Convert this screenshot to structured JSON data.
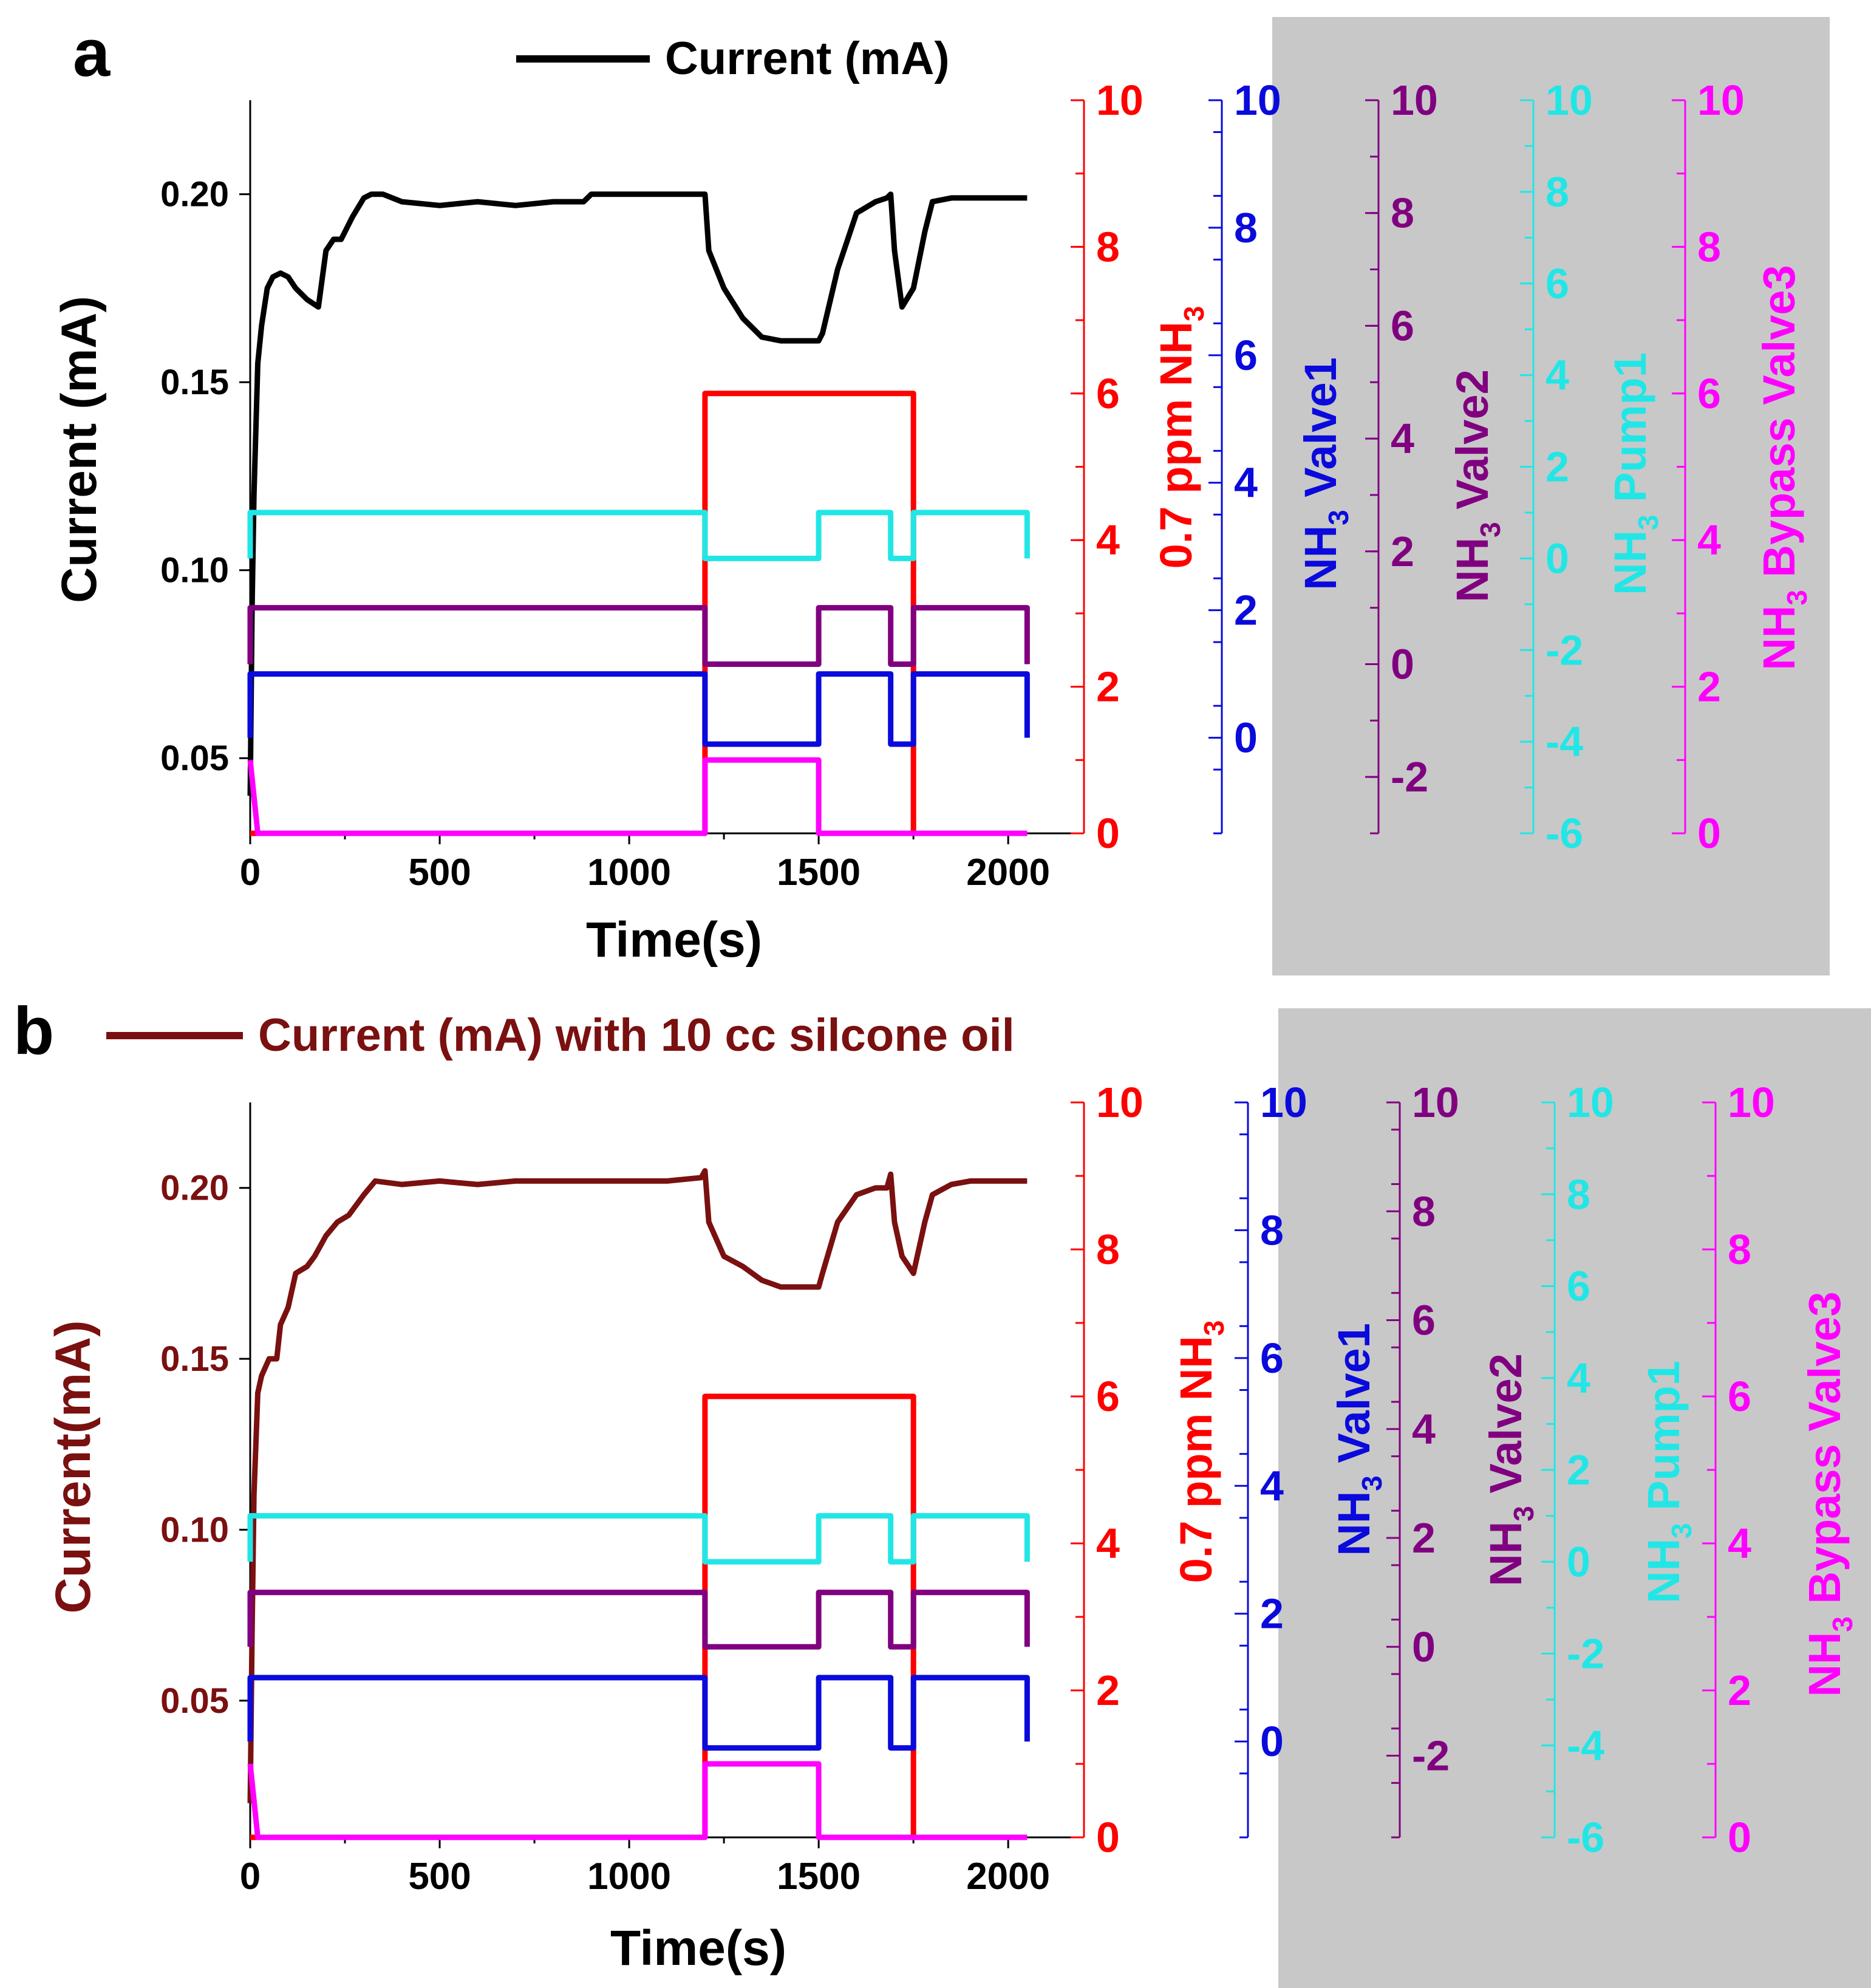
{
  "panels": [
    {
      "letter": "a",
      "legend": "Current (mA)",
      "xlabel": "Time(s)",
      "left_label": "Current (mA)",
      "right_labels": {
        "ppm": {
          "pre": "0.7 ppm NH",
          "sub": "3"
        },
        "valve1": {
          "pre": "NH",
          "sub": "3",
          "post": " Valve1"
        },
        "valve2": {
          "pre": "NH",
          "sub": "3",
          "post": " Valve2"
        },
        "pump1": {
          "pre": "NH",
          "sub": "3",
          "post": " Pump1"
        },
        "bypass": {
          "pre": "NH",
          "sub": "3",
          "post": " Bypass Valve3"
        }
      }
    },
    {
      "letter": "b",
      "legend": "Current (mA) with 10 cc silcone oil",
      "xlabel": "Time(s)",
      "left_label": "Current(mA)",
      "right_labels": {
        "ppm": {
          "pre": "0.7 ppm NH",
          "sub": "3"
        },
        "valve1": {
          "pre": "NH",
          "sub": "3",
          "post": " Valve1"
        },
        "valve2": {
          "pre": "NH",
          "sub": "3",
          "post": " Valve2"
        },
        "pump1": {
          "pre": "NH",
          "sub": "3",
          "post": " Pump1"
        },
        "bypass": {
          "pre": "NH",
          "sub": "3",
          "post": " Bypass Valve3"
        }
      }
    }
  ],
  "colors": {
    "current_a": "#000000",
    "current_b": "#7a1010",
    "ppm": "#ff0000",
    "valve1": "#0a0adc",
    "valve2": "#800080",
    "pump1": "#22e6e6",
    "bypass": "#ff00ff",
    "gray_panel": "#c8c8c8"
  },
  "chart_data": [
    {
      "type": "line",
      "title": "Current (mA)",
      "xlabel": "Time(s)",
      "ylabel": "Current (mA)",
      "xlim": [
        0,
        2200
      ],
      "ylim": [
        0.03,
        0.225
      ],
      "x_ticks": [
        0,
        500,
        1000,
        1500,
        2000
      ],
      "y_ticks": [
        0.05,
        0.1,
        0.15,
        0.2
      ],
      "y_tick_labels": [
        "0.05",
        "0.10",
        "0.15",
        "0.20"
      ],
      "axes": {
        "ppm": {
          "ylim": [
            0,
            10
          ],
          "ticks": [
            0,
            2,
            4,
            6,
            8,
            10
          ]
        },
        "valve1": {
          "ylim": [
            -1.5,
            10
          ],
          "ticks": [
            0,
            2,
            4,
            6,
            8,
            10
          ]
        },
        "valve2": {
          "ylim": [
            -3,
            10
          ],
          "ticks": [
            -2,
            0,
            2,
            4,
            6,
            8,
            10
          ]
        },
        "pump1": {
          "ylim": [
            -6,
            10
          ],
          "ticks": [
            -6,
            -4,
            -2,
            0,
            2,
            4,
            6,
            8,
            10
          ]
        },
        "bypass": {
          "ylim": [
            0,
            10
          ],
          "ticks": [
            0,
            2,
            4,
            6,
            8,
            10
          ]
        }
      },
      "series": [
        {
          "name": "Current (mA)",
          "axis": "left",
          "x": [
            0,
            5,
            10,
            20,
            30,
            45,
            60,
            80,
            100,
            120,
            150,
            180,
            200,
            220,
            240,
            270,
            300,
            320,
            350,
            400,
            500,
            600,
            700,
            800,
            880,
            900,
            950,
            1000,
            1100,
            1180,
            1200,
            1210,
            1250,
            1300,
            1350,
            1400,
            1450,
            1500,
            1510,
            1550,
            1600,
            1650,
            1680,
            1690,
            1700,
            1720,
            1750,
            1780,
            1800,
            1850,
            1900,
            2000,
            2050
          ],
          "y": [
            0.04,
            0.09,
            0.12,
            0.155,
            0.165,
            0.175,
            0.178,
            0.179,
            0.178,
            0.175,
            0.172,
            0.17,
            0.185,
            0.188,
            0.188,
            0.194,
            0.199,
            0.2,
            0.2,
            0.198,
            0.197,
            0.198,
            0.197,
            0.198,
            0.198,
            0.2,
            0.2,
            0.2,
            0.2,
            0.2,
            0.2,
            0.185,
            0.175,
            0.167,
            0.162,
            0.161,
            0.161,
            0.161,
            0.163,
            0.18,
            0.195,
            0.198,
            0.199,
            0.2,
            0.185,
            0.17,
            0.175,
            0.19,
            0.198,
            0.199,
            0.199,
            0.199,
            0.199
          ]
        },
        {
          "name": "0.7 ppm NH3",
          "axis": "ppm",
          "x": [
            0,
            1200,
            1200,
            1750,
            1750,
            2050
          ],
          "y": [
            0,
            0,
            6,
            6,
            0,
            0
          ]
        },
        {
          "name": "NH3 Valve1",
          "axis": "valve1",
          "x": [
            0,
            0,
            1200,
            1200,
            1500,
            1500,
            1690,
            1690,
            1750,
            1750,
            2050,
            2050
          ],
          "y": [
            0,
            1,
            1,
            -0.1,
            -0.1,
            1,
            1,
            -0.1,
            -0.1,
            1,
            1,
            0
          ]
        },
        {
          "name": "NH3 Valve2",
          "axis": "valve2",
          "x": [
            0,
            0,
            1200,
            1200,
            1500,
            1500,
            1690,
            1690,
            1750,
            1750,
            2050,
            2050
          ],
          "y": [
            0,
            1,
            1,
            0,
            0,
            1,
            1,
            0,
            0,
            1,
            1,
            0
          ]
        },
        {
          "name": "NH3 Pump1",
          "axis": "pump1",
          "x": [
            0,
            0,
            1200,
            1200,
            1500,
            1500,
            1690,
            1690,
            1750,
            1750,
            2050,
            2050
          ],
          "y": [
            0,
            1,
            1,
            0,
            0,
            1,
            1,
            0,
            0,
            1,
            1,
            0
          ]
        },
        {
          "name": "NH3 Bypass Valve3",
          "axis": "bypass",
          "x": [
            0,
            0,
            20,
            1200,
            1200,
            1500,
            1500,
            2050
          ],
          "y": [
            1,
            1,
            0,
            0,
            1,
            1,
            0,
            0
          ]
        }
      ]
    },
    {
      "type": "line",
      "title": "Current (mA) with 10 cc silcone oil",
      "xlabel": "Time(s)",
      "ylabel": "Current(mA)",
      "xlim": [
        0,
        2200
      ],
      "ylim": [
        0.01,
        0.225
      ],
      "x_ticks": [
        0,
        500,
        1000,
        1500,
        2000
      ],
      "y_ticks": [
        0.05,
        0.1,
        0.15,
        0.2
      ],
      "y_tick_labels": [
        "0.05",
        "0.10",
        "0.15",
        "0.20"
      ],
      "axes": {
        "ppm": {
          "ylim": [
            0,
            10
          ],
          "ticks": [
            0,
            2,
            4,
            6,
            8,
            10
          ]
        },
        "valve1": {
          "ylim": [
            -1.5,
            10
          ],
          "ticks": [
            0,
            2,
            4,
            6,
            8,
            10
          ]
        },
        "valve2": {
          "ylim": [
            -3.5,
            10
          ],
          "ticks": [
            -2,
            0,
            2,
            4,
            6,
            8,
            10
          ]
        },
        "pump1": {
          "ylim": [
            -6,
            10
          ],
          "ticks": [
            -6,
            -4,
            -2,
            0,
            2,
            4,
            6,
            8,
            10
          ]
        },
        "bypass": {
          "ylim": [
            0,
            10
          ],
          "ticks": [
            0,
            2,
            4,
            6,
            8,
            10
          ]
        }
      },
      "series": [
        {
          "name": "Current (mA) with 10 cc silcone oil",
          "axis": "left",
          "x": [
            0,
            5,
            10,
            20,
            30,
            50,
            70,
            80,
            100,
            120,
            150,
            170,
            200,
            230,
            260,
            300,
            330,
            400,
            500,
            600,
            700,
            800,
            900,
            1000,
            1100,
            1190,
            1200,
            1210,
            1250,
            1300,
            1350,
            1400,
            1450,
            1500,
            1510,
            1550,
            1600,
            1650,
            1680,
            1690,
            1700,
            1720,
            1750,
            1780,
            1800,
            1850,
            1900,
            2000,
            2050
          ],
          "y": [
            0.02,
            0.07,
            0.11,
            0.14,
            0.145,
            0.15,
            0.15,
            0.16,
            0.165,
            0.175,
            0.177,
            0.18,
            0.186,
            0.19,
            0.192,
            0.198,
            0.202,
            0.201,
            0.202,
            0.201,
            0.202,
            0.202,
            0.202,
            0.202,
            0.202,
            0.203,
            0.205,
            0.19,
            0.18,
            0.177,
            0.173,
            0.171,
            0.171,
            0.171,
            0.175,
            0.19,
            0.198,
            0.2,
            0.2,
            0.204,
            0.19,
            0.18,
            0.175,
            0.19,
            0.198,
            0.201,
            0.202,
            0.202,
            0.202
          ]
        },
        {
          "name": "0.7 ppm NH3",
          "axis": "ppm",
          "x": [
            0,
            1200,
            1200,
            1750,
            1750,
            2050
          ],
          "y": [
            0,
            0,
            6,
            6,
            0,
            0
          ]
        },
        {
          "name": "NH3 Valve1",
          "axis": "valve1",
          "x": [
            0,
            0,
            1200,
            1200,
            1500,
            1500,
            1690,
            1690,
            1750,
            1750,
            2050,
            2050
          ],
          "y": [
            0,
            1,
            1,
            -0.1,
            -0.1,
            1,
            1,
            -0.1,
            -0.1,
            1,
            1,
            0
          ]
        },
        {
          "name": "NH3 Valve2",
          "axis": "valve2",
          "x": [
            0,
            0,
            1200,
            1200,
            1500,
            1500,
            1690,
            1690,
            1750,
            1750,
            2050,
            2050
          ],
          "y": [
            0,
            1,
            1,
            0,
            0,
            1,
            1,
            0,
            0,
            1,
            1,
            0
          ]
        },
        {
          "name": "NH3 Pump1",
          "axis": "pump1",
          "x": [
            0,
            0,
            1200,
            1200,
            1500,
            1500,
            1690,
            1690,
            1750,
            1750,
            2050,
            2050
          ],
          "y": [
            0,
            1,
            1,
            0,
            0,
            1,
            1,
            0,
            0,
            1,
            1,
            0
          ]
        },
        {
          "name": "NH3 Bypass Valve3",
          "axis": "bypass",
          "x": [
            0,
            0,
            20,
            1200,
            1200,
            1500,
            1500,
            2050
          ],
          "y": [
            1,
            1,
            0,
            0,
            1,
            1,
            0,
            0
          ]
        }
      ]
    }
  ]
}
